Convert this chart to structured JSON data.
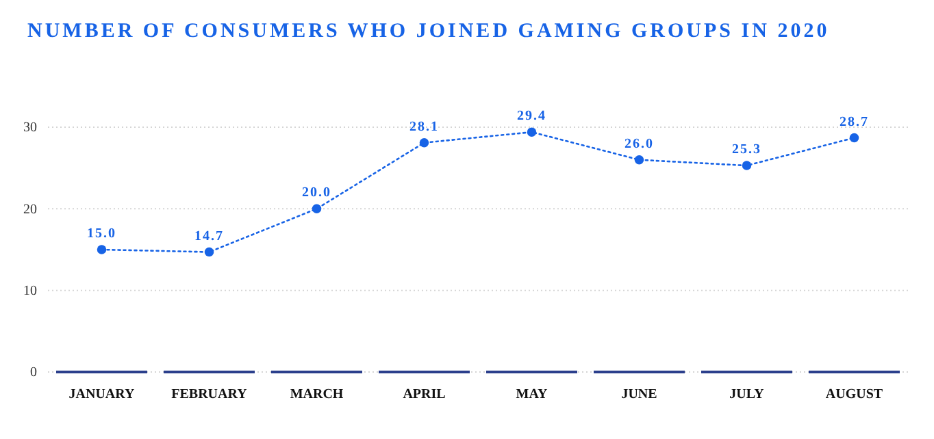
{
  "chart_data": {
    "type": "line",
    "title": "NUMBER OF CONSUMERS WHO JOINED GAMING GROUPS IN 2020",
    "categories": [
      "JANUARY",
      "FEBRUARY",
      "MARCH",
      "APRIL",
      "MAY",
      "JUNE",
      "JULY",
      "AUGUST"
    ],
    "series": [
      {
        "color": "#1763e6",
        "values": [
          15.0,
          14.7,
          20.0,
          28.1,
          29.4,
          26.0,
          25.3,
          28.7
        ],
        "value_labels": [
          "15.0",
          "14.7",
          "20.0",
          "28.1",
          "29.4",
          "26.0",
          "25.3",
          "28.7"
        ]
      }
    ],
    "ylim": [
      0,
      30
    ],
    "yticks": [
      0,
      10,
      20,
      30
    ],
    "grid": "y",
    "marker": "circle",
    "line_style": "dotted"
  }
}
